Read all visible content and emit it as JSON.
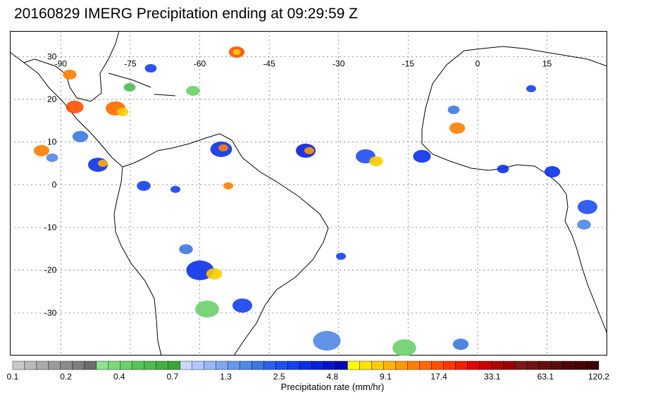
{
  "title": "20160829 IMERG Precipitation ending at 09:29:59 Z",
  "map": {
    "lon_range": [
      -101,
      28
    ],
    "lat_range": [
      -40,
      36
    ],
    "lon_ticks": [
      "-90",
      "-75",
      "-60",
      "-45",
      "-30",
      "-15",
      "0",
      "15"
    ],
    "lat_ticks": [
      "30",
      "20",
      "10",
      "0",
      "-10",
      "-20",
      "-30"
    ],
    "gridlines": true
  },
  "colorbar": {
    "label": "Precipitation rate (mm/hr)",
    "tick_labels": [
      "0.1",
      "0.2",
      "0.4",
      "0.7",
      "1.3",
      "2.5",
      "4.8",
      "9.1",
      "17.4",
      "33.1",
      "63.1",
      "120.2"
    ],
    "colors": [
      "#c8c8c8",
      "#b9b9b9",
      "#aaaaaa",
      "#9b9b9b",
      "#8c8c8c",
      "#7d7d7d",
      "#6e6e6e",
      "#8de28d",
      "#7cd97c",
      "#6bcf6b",
      "#5ac55a",
      "#4fbb4f",
      "#44b044",
      "#3aa63a",
      "#c8d8ff",
      "#b0c8fb",
      "#98b8f6",
      "#80a8f1",
      "#6898ec",
      "#5088e6",
      "#3c78e0",
      "#2a60f0",
      "#1e4ff0",
      "#1440ee",
      "#0a30e8",
      "#0820d8",
      "#0614c8",
      "#0408b8",
      "#ffff00",
      "#ffe600",
      "#ffcc00",
      "#ffb300",
      "#ff9a00",
      "#ff8000",
      "#ff6800",
      "#ff5000",
      "#ff3800",
      "#f02000",
      "#e00000",
      "#c80000",
      "#b00000",
      "#980000",
      "#7a1a1a",
      "#6e1414",
      "#621010",
      "#580c0c",
      "#4e0808",
      "#440404",
      "#3a0000"
    ]
  }
}
